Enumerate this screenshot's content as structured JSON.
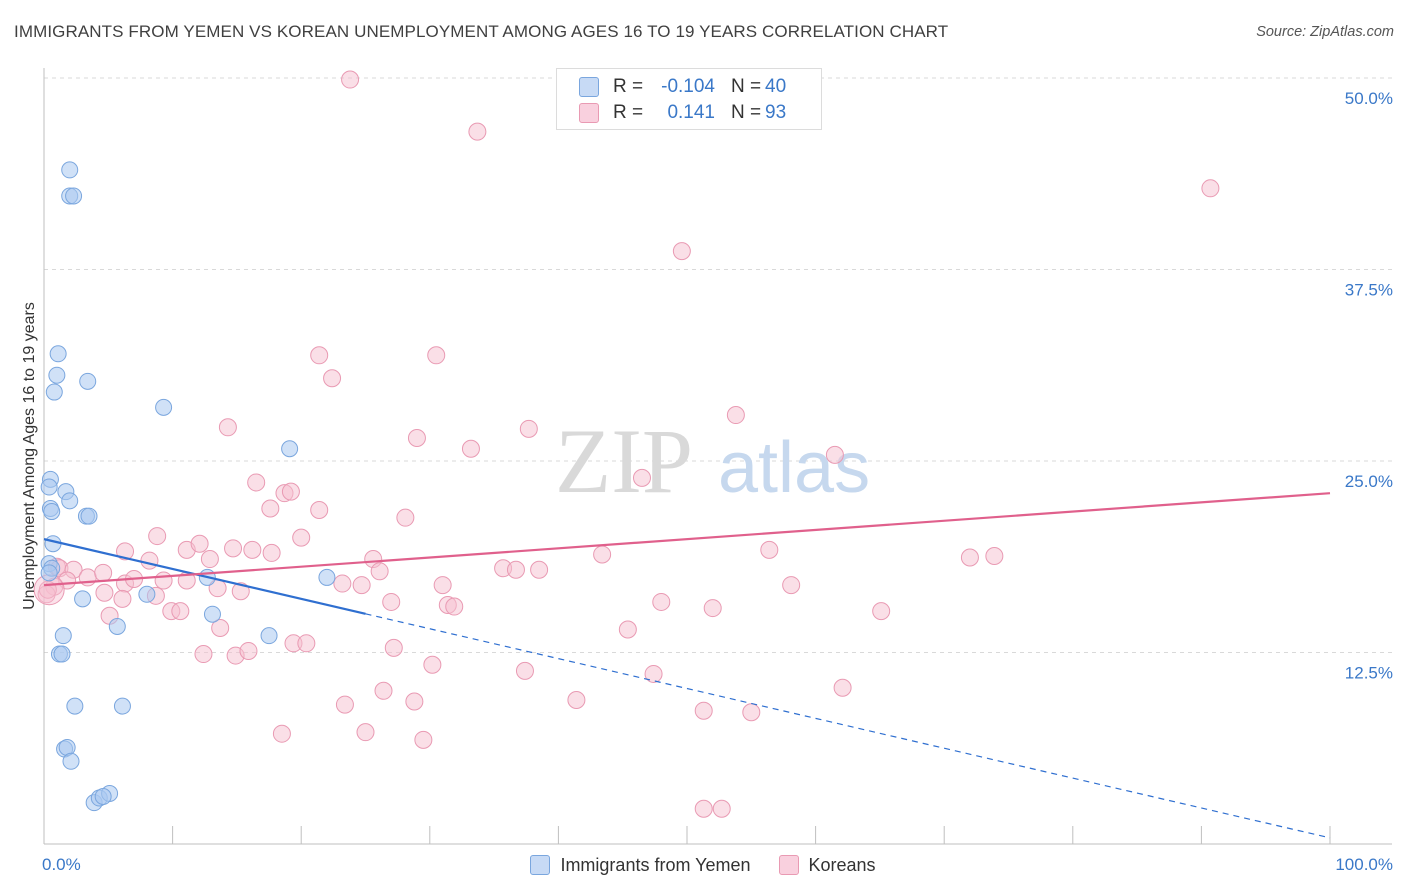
{
  "title": "IMMIGRANTS FROM YEMEN VS KOREAN UNEMPLOYMENT AMONG AGES 16 TO 19 YEARS CORRELATION CHART",
  "source": "Source: ZipAtlas.com",
  "watermark": {
    "zip": "ZIP",
    "atlas": "atlas"
  },
  "legend": {
    "rows": [
      {
        "r_label": "R =",
        "r_value": "-0.104",
        "n_label": "N =",
        "n_value": "40"
      },
      {
        "r_label": "R =",
        "r_value": "0.141",
        "n_label": "N =",
        "n_value": "93"
      }
    ]
  },
  "bottom_legend": {
    "yemen": "Immigrants from Yemen",
    "korean": "Koreans"
  },
  "colors": {
    "yemen_fill": "#a9c8f0",
    "yemen_stroke": "#7aa6de",
    "yemen_line": "#2f6fd0",
    "korean_fill": "#f6bfd0",
    "korean_stroke": "#e99ab3",
    "korean_line": "#e0608c",
    "tick_label": "#3a78c8",
    "grid": "#d9d9d9"
  },
  "chart_data": {
    "type": "scatter",
    "title": "IMMIGRANTS FROM YEMEN VS KOREAN UNEMPLOYMENT AMONG AGES 16 TO 19 YEARS CORRELATION CHART",
    "xlabel": "",
    "ylabel": "Unemployment Among Ages 16 to 19 years",
    "xlim": [
      0,
      100
    ],
    "ylim": [
      0,
      50
    ],
    "x_tick_labels": [
      "0.0%",
      "100.0%"
    ],
    "y_ticks": [
      {
        "value": 12.5,
        "label": "12.5%"
      },
      {
        "value": 25.0,
        "label": "25.0%"
      },
      {
        "value": 37.5,
        "label": "37.5%"
      },
      {
        "value": 50.0,
        "label": "50.0%"
      }
    ],
    "grid": true,
    "series": [
      {
        "name": "Immigrants from Yemen",
        "R": -0.104,
        "N": 40,
        "trend": {
          "x0": 0,
          "y0": 19.9,
          "x1": 100,
          "y1": 0.4,
          "solid_until_x": 25
        },
        "points": [
          [
            2.0,
            44.0
          ],
          [
            2.0,
            42.3
          ],
          [
            2.3,
            42.3
          ],
          [
            1.1,
            32.0
          ],
          [
            1.0,
            30.6
          ],
          [
            0.8,
            29.5
          ],
          [
            3.4,
            30.2
          ],
          [
            9.3,
            28.5
          ],
          [
            19.1,
            25.8
          ],
          [
            0.5,
            23.8
          ],
          [
            0.4,
            23.3
          ],
          [
            1.7,
            23.0
          ],
          [
            2.0,
            22.4
          ],
          [
            0.5,
            21.9
          ],
          [
            0.6,
            21.7
          ],
          [
            3.3,
            21.4
          ],
          [
            3.5,
            21.4
          ],
          [
            0.7,
            19.6
          ],
          [
            0.4,
            18.3
          ],
          [
            0.6,
            18.0
          ],
          [
            0.4,
            17.7
          ],
          [
            12.7,
            17.4
          ],
          [
            22.0,
            17.4
          ],
          [
            3.0,
            16.0
          ],
          [
            8.0,
            16.3
          ],
          [
            13.1,
            15.0
          ],
          [
            5.7,
            14.2
          ],
          [
            1.5,
            13.6
          ],
          [
            17.5,
            13.6
          ],
          [
            1.2,
            12.4
          ],
          [
            1.4,
            12.4
          ],
          [
            2.4,
            9.0
          ],
          [
            6.1,
            9.0
          ],
          [
            1.6,
            6.2
          ],
          [
            1.8,
            6.3
          ],
          [
            2.1,
            5.4
          ],
          [
            3.9,
            2.7
          ],
          [
            4.3,
            3.0
          ],
          [
            5.1,
            3.3
          ],
          [
            4.6,
            3.1
          ]
        ]
      },
      {
        "name": "Koreans",
        "R": 0.141,
        "N": 93,
        "trend": {
          "x0": 0,
          "y0": 16.9,
          "x1": 100,
          "y1": 22.9
        },
        "points": [
          [
            23.8,
            49.9
          ],
          [
            33.7,
            46.5
          ],
          [
            90.7,
            42.8
          ],
          [
            49.6,
            38.7
          ],
          [
            21.4,
            31.9
          ],
          [
            30.5,
            31.9
          ],
          [
            22.4,
            30.4
          ],
          [
            53.8,
            28.0
          ],
          [
            14.3,
            27.2
          ],
          [
            37.7,
            27.1
          ],
          [
            29.0,
            26.5
          ],
          [
            33.2,
            25.8
          ],
          [
            61.5,
            25.4
          ],
          [
            46.5,
            23.9
          ],
          [
            16.5,
            23.6
          ],
          [
            18.7,
            22.9
          ],
          [
            19.2,
            23.0
          ],
          [
            17.6,
            21.9
          ],
          [
            21.4,
            21.8
          ],
          [
            28.1,
            21.3
          ],
          [
            8.8,
            20.1
          ],
          [
            20.0,
            20.0
          ],
          [
            11.1,
            19.2
          ],
          [
            16.2,
            19.2
          ],
          [
            14.7,
            19.3
          ],
          [
            17.7,
            19.0
          ],
          [
            56.4,
            19.2
          ],
          [
            43.4,
            18.9
          ],
          [
            72.0,
            18.7
          ],
          [
            73.9,
            18.8
          ],
          [
            12.9,
            18.6
          ],
          [
            6.3,
            19.1
          ],
          [
            12.1,
            19.6
          ],
          [
            1.0,
            18.1
          ],
          [
            1.2,
            18.0
          ],
          [
            2.3,
            17.9
          ],
          [
            3.4,
            17.4
          ],
          [
            4.6,
            17.7
          ],
          [
            8.2,
            18.5
          ],
          [
            25.6,
            18.6
          ],
          [
            35.7,
            18.0
          ],
          [
            36.7,
            17.9
          ],
          [
            38.5,
            17.9
          ],
          [
            26.1,
            17.8
          ],
          [
            1.8,
            17.2
          ],
          [
            0.8,
            16.8
          ],
          [
            0.2,
            16.3
          ],
          [
            0.3,
            16.6
          ],
          [
            6.3,
            17.0
          ],
          [
            9.3,
            17.2
          ],
          [
            7.0,
            17.3
          ],
          [
            11.1,
            17.2
          ],
          [
            13.5,
            16.7
          ],
          [
            15.3,
            16.5
          ],
          [
            23.2,
            17.0
          ],
          [
            24.7,
            16.9
          ],
          [
            31.0,
            16.9
          ],
          [
            58.1,
            16.9
          ],
          [
            4.7,
            16.4
          ],
          [
            6.1,
            16.0
          ],
          [
            8.7,
            16.2
          ],
          [
            9.9,
            15.2
          ],
          [
            10.6,
            15.2
          ],
          [
            27.0,
            15.8
          ],
          [
            31.4,
            15.6
          ],
          [
            31.9,
            15.5
          ],
          [
            48.0,
            15.8
          ],
          [
            52.0,
            15.4
          ],
          [
            65.1,
            15.2
          ],
          [
            5.1,
            14.9
          ],
          [
            13.7,
            14.1
          ],
          [
            45.4,
            14.0
          ],
          [
            19.4,
            13.1
          ],
          [
            20.4,
            13.1
          ],
          [
            12.4,
            12.4
          ],
          [
            14.9,
            12.3
          ],
          [
            15.9,
            12.6
          ],
          [
            27.2,
            12.8
          ],
          [
            30.2,
            11.7
          ],
          [
            37.4,
            11.3
          ],
          [
            47.4,
            11.1
          ],
          [
            26.4,
            10.0
          ],
          [
            28.8,
            9.3
          ],
          [
            23.4,
            9.1
          ],
          [
            41.4,
            9.4
          ],
          [
            62.1,
            10.2
          ],
          [
            51.3,
            8.7
          ],
          [
            55.0,
            8.6
          ],
          [
            18.5,
            7.2
          ],
          [
            25.0,
            7.3
          ],
          [
            29.5,
            6.8
          ],
          [
            51.3,
            2.3
          ],
          [
            52.7,
            2.3
          ]
        ]
      }
    ]
  }
}
